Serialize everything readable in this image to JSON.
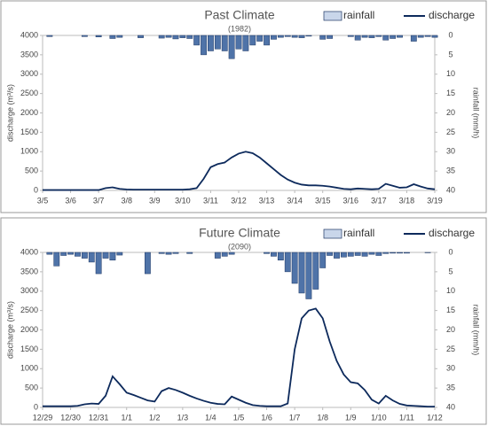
{
  "chart_data": [
    {
      "type": "combo",
      "title": "Past Climate",
      "subtitle": "(1982)",
      "y_label": "discharge (m³/s)",
      "y2_label": "rainfall (mm/h)",
      "x": [
        0,
        0.25,
        0.5,
        0.75,
        1,
        1.25,
        1.5,
        1.75,
        2,
        2.25,
        2.5,
        2.75,
        3,
        3.25,
        3.5,
        3.75,
        4,
        4.25,
        4.5,
        4.75,
        5,
        5.25,
        5.5,
        5.75,
        6,
        6.25,
        6.5,
        6.75,
        7,
        7.25,
        7.5,
        7.75,
        8,
        8.25,
        8.5,
        8.75,
        9,
        9.25,
        9.5,
        9.75,
        10,
        10.25,
        10.5,
        10.75,
        11,
        11.25,
        11.5,
        11.75,
        12,
        12.25,
        12.5,
        12.75,
        13,
        13.25,
        13.5,
        13.75,
        14
      ],
      "xlim": [
        0,
        14
      ],
      "xticks": [
        {
          "value": 0,
          "label": "3/5"
        },
        {
          "value": 1,
          "label": "3/6"
        },
        {
          "value": 2,
          "label": "3/7"
        },
        {
          "value": 3,
          "label": "3/8"
        },
        {
          "value": 4,
          "label": "3/9"
        },
        {
          "value": 5,
          "label": "3/10"
        },
        {
          "value": 6,
          "label": "3/11"
        },
        {
          "value": 7,
          "label": "3/12"
        },
        {
          "value": 8,
          "label": "3/13"
        },
        {
          "value": 9,
          "label": "3/14"
        },
        {
          "value": 10,
          "label": "3/15"
        },
        {
          "value": 11,
          "label": "3/16"
        },
        {
          "value": 12,
          "label": "3/17"
        },
        {
          "value": 13,
          "label": "3/18"
        },
        {
          "value": 14,
          "label": "3/19"
        }
      ],
      "ylim": [
        0,
        4000
      ],
      "yticks": [
        0,
        500,
        1000,
        1500,
        2000,
        2500,
        3000,
        3500,
        4000
      ],
      "y2lim": [
        40,
        0
      ],
      "y2ticks": [
        0,
        5,
        10,
        15,
        20,
        25,
        30,
        35,
        40
      ],
      "series": [
        {
          "name": "rainfall",
          "type": "bar",
          "axis": "y2",
          "color": "#4f73a8",
          "values": [
            0,
            0.3,
            0,
            0,
            0,
            0,
            0.3,
            0,
            0.4,
            0,
            0.8,
            0.5,
            0,
            0,
            0.6,
            0,
            0,
            0.7,
            0.5,
            0.9,
            0.6,
            0.8,
            2.5,
            5,
            4,
            3.5,
            4,
            6,
            3.5,
            4,
            2.5,
            1.5,
            2.5,
            1,
            0.5,
            0.3,
            0.5,
            0.6,
            0.2,
            0,
            1,
            0.8,
            0,
            0,
            0.3,
            1.2,
            0.5,
            0.6,
            0.3,
            1.2,
            0.8,
            0.5,
            0,
            1.5,
            0.5,
            0.3,
            0.5
          ]
        },
        {
          "name": "discharge",
          "type": "line",
          "color": "#0d2a5c",
          "values": [
            10,
            10,
            10,
            10,
            10,
            10,
            10,
            10,
            10,
            60,
            80,
            40,
            25,
            20,
            20,
            20,
            20,
            20,
            20,
            20,
            20,
            30,
            60,
            300,
            600,
            680,
            720,
            850,
            950,
            1000,
            960,
            850,
            700,
            550,
            400,
            280,
            200,
            150,
            130,
            130,
            120,
            100,
            70,
            40,
            30,
            50,
            40,
            30,
            40,
            170,
            120,
            70,
            80,
            160,
            100,
            50,
            30
          ]
        }
      ]
    },
    {
      "type": "combo",
      "title": "Future Climate",
      "subtitle": "(2090)",
      "y_label": "discharge (m³/s)",
      "y2_label": "rainfall (mm/h)",
      "x": [
        0,
        0.25,
        0.5,
        0.75,
        1,
        1.25,
        1.5,
        1.75,
        2,
        2.25,
        2.5,
        2.75,
        3,
        3.25,
        3.5,
        3.75,
        4,
        4.25,
        4.5,
        4.75,
        5,
        5.25,
        5.5,
        5.75,
        6,
        6.25,
        6.5,
        6.75,
        7,
        7.25,
        7.5,
        7.75,
        8,
        8.25,
        8.5,
        8.75,
        9,
        9.25,
        9.5,
        9.75,
        10,
        10.25,
        10.5,
        10.75,
        11,
        11.25,
        11.5,
        11.75,
        12,
        12.25,
        12.5,
        12.75,
        13,
        13.25,
        13.5,
        13.75,
        14
      ],
      "xlim": [
        0,
        14
      ],
      "xticks": [
        {
          "value": 0,
          "label": "12/29"
        },
        {
          "value": 1,
          "label": "12/30"
        },
        {
          "value": 2,
          "label": "12/31"
        },
        {
          "value": 3,
          "label": "1/1"
        },
        {
          "value": 4,
          "label": "1/2"
        },
        {
          "value": 5,
          "label": "1/3"
        },
        {
          "value": 6,
          "label": "1/4"
        },
        {
          "value": 7,
          "label": "1/5"
        },
        {
          "value": 8,
          "label": "1/6"
        },
        {
          "value": 9,
          "label": "1/7"
        },
        {
          "value": 10,
          "label": "1/8"
        },
        {
          "value": 11,
          "label": "1/9"
        },
        {
          "value": 12,
          "label": "1/10"
        },
        {
          "value": 13,
          "label": "1/11"
        },
        {
          "value": 14,
          "label": "1/12"
        }
      ],
      "ylim": [
        0,
        4000
      ],
      "yticks": [
        0,
        500,
        1000,
        1500,
        2000,
        2500,
        3000,
        3500,
        4000
      ],
      "y2lim": [
        40,
        0
      ],
      "y2ticks": [
        0,
        5,
        10,
        15,
        20,
        25,
        30,
        35,
        40
      ],
      "series": [
        {
          "name": "rainfall",
          "type": "bar",
          "axis": "y2",
          "color": "#4f73a8",
          "values": [
            0,
            0.5,
            3.5,
            0.8,
            0.5,
            1,
            1.5,
            2.5,
            5.5,
            1.5,
            2,
            0.7,
            0,
            0,
            0,
            5.5,
            0,
            0.3,
            0.5,
            0.3,
            0,
            0.3,
            0,
            0,
            0,
            1.5,
            1,
            0.5,
            0,
            0,
            0,
            0,
            0.3,
            1,
            2,
            5,
            8,
            10.5,
            12,
            9.5,
            4,
            0.8,
            1.5,
            1.2,
            1,
            0.8,
            1,
            0.5,
            0.8,
            0.3,
            0.2,
            0.2,
            0.2,
            0,
            0,
            0.1,
            0
          ]
        },
        {
          "name": "discharge",
          "type": "line",
          "color": "#0d2a5c",
          "values": [
            30,
            30,
            30,
            30,
            30,
            40,
            80,
            100,
            90,
            300,
            800,
            600,
            380,
            320,
            250,
            180,
            150,
            420,
            500,
            450,
            380,
            300,
            230,
            170,
            120,
            90,
            80,
            280,
            200,
            120,
            60,
            40,
            30,
            30,
            30,
            100,
            1500,
            2300,
            2500,
            2550,
            2300,
            1700,
            1200,
            850,
            650,
            620,
            450,
            200,
            100,
            300,
            180,
            90,
            50,
            40,
            30,
            20,
            20
          ]
        }
      ]
    }
  ]
}
